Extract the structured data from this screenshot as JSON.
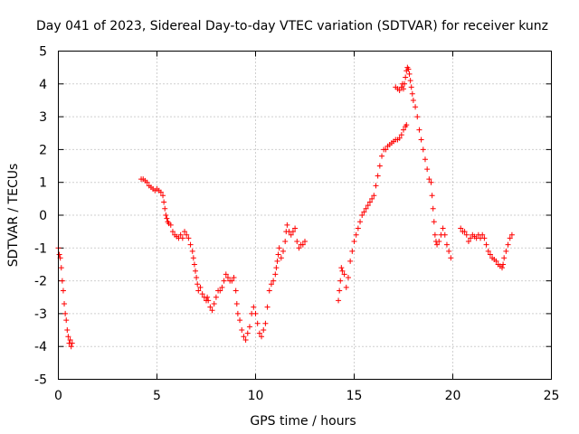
{
  "chart_data": {
    "type": "scatter",
    "title": "Day 041 of 2023, Sidereal Day-to-day VTEC variation (SDTVAR) for receiver kunz",
    "xlabel": "GPS time / hours",
    "ylabel": "SDTVAR / TECUs",
    "xlim": [
      0,
      25
    ],
    "ylim": [
      -5,
      5
    ],
    "xticks": [
      0,
      5,
      10,
      15,
      20,
      25
    ],
    "yticks": [
      -5,
      -4,
      -3,
      -2,
      -1,
      0,
      1,
      2,
      3,
      4,
      5
    ],
    "grid": true,
    "marker": "+",
    "color": "#ff0000",
    "series": [
      {
        "values": [
          [
            0.0,
            -1.0
          ],
          [
            0.05,
            -1.2
          ],
          [
            0.1,
            -1.3
          ],
          [
            0.15,
            -1.6
          ],
          [
            0.2,
            -2.0
          ],
          [
            0.25,
            -2.3
          ],
          [
            0.3,
            -2.7
          ],
          [
            0.35,
            -3.0
          ],
          [
            0.4,
            -3.2
          ],
          [
            0.45,
            -3.5
          ],
          [
            0.5,
            -3.7
          ],
          [
            0.55,
            -3.9
          ],
          [
            0.6,
            -3.8
          ],
          [
            0.65,
            -4.0
          ],
          [
            0.7,
            -3.9
          ],
          [
            4.2,
            1.1
          ],
          [
            4.3,
            1.1
          ],
          [
            4.4,
            1.05
          ],
          [
            4.5,
            1.0
          ],
          [
            4.6,
            0.9
          ],
          [
            4.7,
            0.85
          ],
          [
            4.8,
            0.8
          ],
          [
            4.9,
            0.75
          ],
          [
            5.0,
            0.8
          ],
          [
            5.1,
            0.75
          ],
          [
            5.2,
            0.7
          ],
          [
            5.3,
            0.6
          ],
          [
            5.35,
            0.4
          ],
          [
            5.4,
            0.2
          ],
          [
            5.45,
            0.0
          ],
          [
            5.5,
            -0.1
          ],
          [
            5.55,
            -0.2
          ],
          [
            5.6,
            -0.25
          ],
          [
            5.7,
            -0.3
          ],
          [
            5.8,
            -0.5
          ],
          [
            5.9,
            -0.6
          ],
          [
            6.0,
            -0.65
          ],
          [
            6.1,
            -0.7
          ],
          [
            6.2,
            -0.6
          ],
          [
            6.3,
            -0.7
          ],
          [
            6.4,
            -0.5
          ],
          [
            6.5,
            -0.6
          ],
          [
            6.6,
            -0.7
          ],
          [
            6.7,
            -0.9
          ],
          [
            6.8,
            -1.1
          ],
          [
            6.85,
            -1.3
          ],
          [
            6.9,
            -1.5
          ],
          [
            6.95,
            -1.7
          ],
          [
            7.0,
            -1.9
          ],
          [
            7.05,
            -2.1
          ],
          [
            7.1,
            -2.3
          ],
          [
            7.2,
            -2.2
          ],
          [
            7.3,
            -2.4
          ],
          [
            7.4,
            -2.5
          ],
          [
            7.5,
            -2.6
          ],
          [
            7.55,
            -2.5
          ],
          [
            7.6,
            -2.6
          ],
          [
            7.7,
            -2.8
          ],
          [
            7.8,
            -2.9
          ],
          [
            7.9,
            -2.7
          ],
          [
            8.0,
            -2.5
          ],
          [
            8.1,
            -2.3
          ],
          [
            8.2,
            -2.3
          ],
          [
            8.3,
            -2.2
          ],
          [
            8.4,
            -2.0
          ],
          [
            8.5,
            -1.8
          ],
          [
            8.6,
            -1.9
          ],
          [
            8.7,
            -2.0
          ],
          [
            8.8,
            -2.0
          ],
          [
            8.9,
            -1.9
          ],
          [
            9.0,
            -2.3
          ],
          [
            9.05,
            -2.7
          ],
          [
            9.1,
            -3.0
          ],
          [
            9.2,
            -3.2
          ],
          [
            9.3,
            -3.5
          ],
          [
            9.4,
            -3.7
          ],
          [
            9.5,
            -3.8
          ],
          [
            9.6,
            -3.6
          ],
          [
            9.7,
            -3.4
          ],
          [
            9.8,
            -3.0
          ],
          [
            9.9,
            -2.8
          ],
          [
            10.0,
            -3.0
          ],
          [
            10.1,
            -3.3
          ],
          [
            10.2,
            -3.6
          ],
          [
            10.3,
            -3.7
          ],
          [
            10.4,
            -3.5
          ],
          [
            10.5,
            -3.3
          ],
          [
            10.6,
            -2.8
          ],
          [
            10.7,
            -2.3
          ],
          [
            10.8,
            -2.1
          ],
          [
            10.9,
            -2.0
          ],
          [
            11.0,
            -1.8
          ],
          [
            11.05,
            -1.6
          ],
          [
            11.1,
            -1.4
          ],
          [
            11.15,
            -1.2
          ],
          [
            11.2,
            -1.0
          ],
          [
            11.3,
            -1.3
          ],
          [
            11.4,
            -1.1
          ],
          [
            11.5,
            -0.8
          ],
          [
            11.55,
            -0.5
          ],
          [
            11.6,
            -0.3
          ],
          [
            11.7,
            -0.5
          ],
          [
            11.8,
            -0.6
          ],
          [
            11.9,
            -0.5
          ],
          [
            12.0,
            -0.4
          ],
          [
            12.1,
            -0.8
          ],
          [
            12.2,
            -1.0
          ],
          [
            12.3,
            -0.9
          ],
          [
            12.4,
            -0.9
          ],
          [
            12.5,
            -0.8
          ],
          [
            14.2,
            -2.6
          ],
          [
            14.25,
            -2.3
          ],
          [
            14.3,
            -2.0
          ],
          [
            14.35,
            -1.6
          ],
          [
            14.4,
            -1.7
          ],
          [
            14.5,
            -1.8
          ],
          [
            14.6,
            -2.2
          ],
          [
            14.7,
            -1.9
          ],
          [
            14.8,
            -1.4
          ],
          [
            14.9,
            -1.1
          ],
          [
            15.0,
            -0.8
          ],
          [
            15.1,
            -0.6
          ],
          [
            15.2,
            -0.4
          ],
          [
            15.3,
            -0.2
          ],
          [
            15.4,
            0.0
          ],
          [
            15.5,
            0.1
          ],
          [
            15.6,
            0.2
          ],
          [
            15.7,
            0.3
          ],
          [
            15.8,
            0.4
          ],
          [
            15.9,
            0.5
          ],
          [
            16.0,
            0.6
          ],
          [
            16.1,
            0.9
          ],
          [
            16.2,
            1.2
          ],
          [
            16.3,
            1.5
          ],
          [
            16.4,
            1.8
          ],
          [
            16.5,
            2.0
          ],
          [
            16.6,
            2.0
          ],
          [
            16.7,
            2.1
          ],
          [
            16.8,
            2.15
          ],
          [
            16.9,
            2.2
          ],
          [
            17.0,
            2.25
          ],
          [
            17.1,
            2.3
          ],
          [
            17.2,
            2.3
          ],
          [
            17.3,
            2.35
          ],
          [
            17.4,
            2.45
          ],
          [
            17.5,
            2.6
          ],
          [
            17.6,
            2.7
          ],
          [
            17.65,
            2.75
          ],
          [
            17.1,
            3.9
          ],
          [
            17.2,
            3.85
          ],
          [
            17.3,
            3.8
          ],
          [
            17.4,
            3.9
          ],
          [
            17.45,
            4.0
          ],
          [
            17.5,
            3.85
          ],
          [
            17.55,
            4.0
          ],
          [
            17.6,
            4.2
          ],
          [
            17.65,
            4.4
          ],
          [
            17.7,
            4.5
          ],
          [
            17.75,
            4.45
          ],
          [
            17.8,
            4.3
          ],
          [
            17.85,
            4.1
          ],
          [
            17.9,
            3.9
          ],
          [
            17.95,
            3.7
          ],
          [
            18.0,
            3.5
          ],
          [
            18.1,
            3.3
          ],
          [
            18.2,
            3.0
          ],
          [
            18.3,
            2.6
          ],
          [
            18.4,
            2.3
          ],
          [
            18.5,
            2.0
          ],
          [
            18.6,
            1.7
          ],
          [
            18.7,
            1.4
          ],
          [
            18.8,
            1.1
          ],
          [
            18.9,
            1.0
          ],
          [
            18.95,
            0.6
          ],
          [
            19.0,
            0.2
          ],
          [
            19.05,
            -0.2
          ],
          [
            19.1,
            -0.6
          ],
          [
            19.15,
            -0.8
          ],
          [
            19.2,
            -0.9
          ],
          [
            19.3,
            -0.8
          ],
          [
            19.4,
            -0.6
          ],
          [
            19.5,
            -0.4
          ],
          [
            19.6,
            -0.6
          ],
          [
            19.7,
            -0.9
          ],
          [
            19.8,
            -1.1
          ],
          [
            19.9,
            -1.3
          ],
          [
            20.4,
            -0.4
          ],
          [
            20.5,
            -0.5
          ],
          [
            20.6,
            -0.5
          ],
          [
            20.7,
            -0.6
          ],
          [
            20.8,
            -0.8
          ],
          [
            20.9,
            -0.7
          ],
          [
            21.0,
            -0.6
          ],
          [
            21.1,
            -0.65
          ],
          [
            21.2,
            -0.7
          ],
          [
            21.3,
            -0.6
          ],
          [
            21.4,
            -0.7
          ],
          [
            21.5,
            -0.6
          ],
          [
            21.6,
            -0.7
          ],
          [
            21.7,
            -0.9
          ],
          [
            21.8,
            -1.1
          ],
          [
            21.9,
            -1.2
          ],
          [
            22.0,
            -1.3
          ],
          [
            22.1,
            -1.35
          ],
          [
            22.2,
            -1.4
          ],
          [
            22.3,
            -1.5
          ],
          [
            22.4,
            -1.55
          ],
          [
            22.5,
            -1.6
          ],
          [
            22.55,
            -1.5
          ],
          [
            22.6,
            -1.3
          ],
          [
            22.7,
            -1.1
          ],
          [
            22.8,
            -0.9
          ],
          [
            22.9,
            -0.7
          ],
          [
            23.0,
            -0.6
          ]
        ]
      }
    ]
  }
}
